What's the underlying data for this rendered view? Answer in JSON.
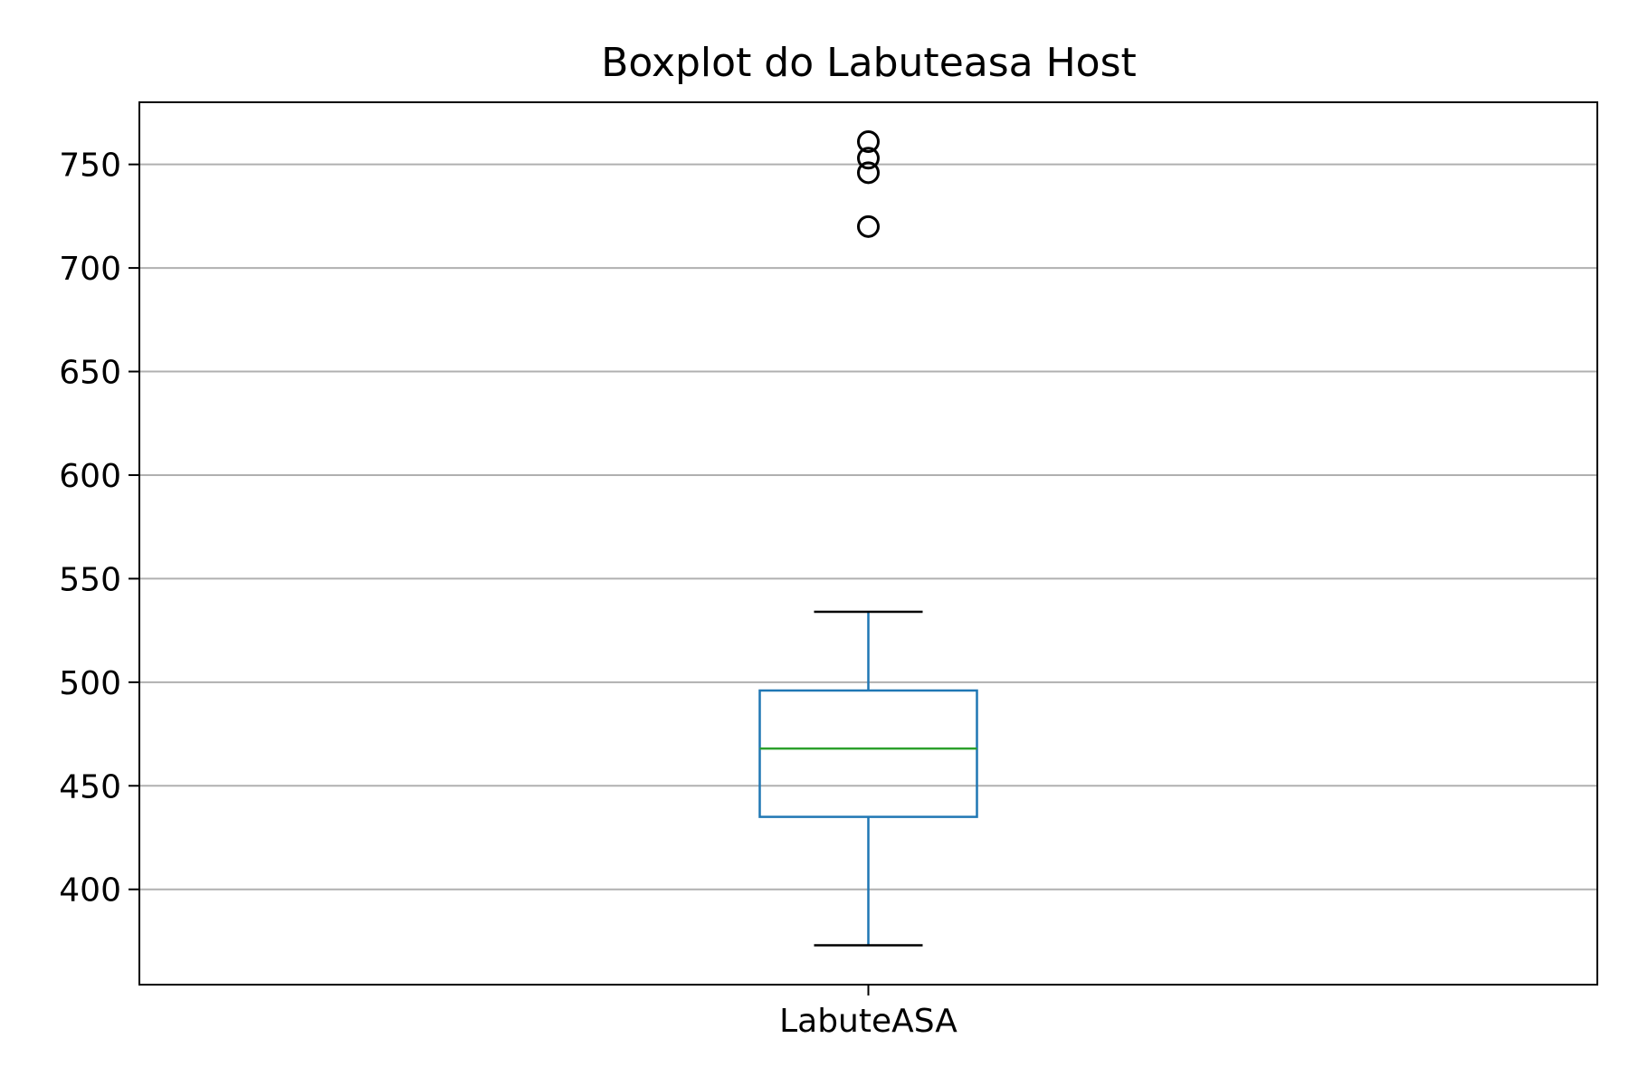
{
  "chart_data": {
    "type": "box",
    "title": "Boxplot do Labuteasa Host",
    "xlabel": "",
    "ylabel": "",
    "categories": [
      "LabuteASA"
    ],
    "boxes": [
      {
        "category": "LabuteASA",
        "whisker_low": 373,
        "q1": 435,
        "median": 468,
        "q3": 496,
        "whisker_high": 534,
        "outliers": [
          720,
          746,
          753,
          761
        ]
      }
    ],
    "ylim": [
      354,
      780
    ],
    "yticks": [
      400,
      450,
      500,
      550,
      600,
      650,
      700,
      750
    ],
    "ytick_labels": [
      "400",
      "450",
      "500",
      "550",
      "600",
      "650",
      "700",
      "750"
    ],
    "grid": "horizontal",
    "colors": {
      "box": "#1f77b4",
      "median": "#2ca02c",
      "caps": "#000000",
      "outliers": "#000000",
      "grid": "#b0b0b0",
      "axes": "#000000"
    }
  }
}
